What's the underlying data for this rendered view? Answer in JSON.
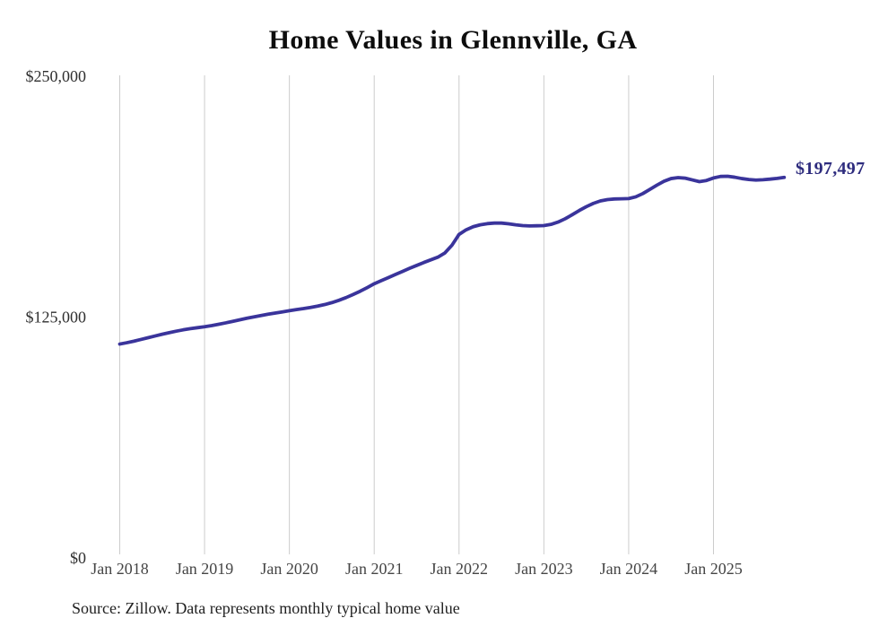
{
  "header": {
    "title": "Home Values in Glennville, GA"
  },
  "chart_data": {
    "type": "line",
    "title": "Home Values in Glennville, GA",
    "xlabel": "",
    "ylabel": "",
    "frequency": "monthly",
    "x_tick_labels": [
      "Jan 2018",
      "Jan 2019",
      "Jan 2020",
      "Jan 2021",
      "Jan 2022",
      "Jan 2023",
      "Jan 2024",
      "Jan 2025"
    ],
    "y_ticks": [
      {
        "label": "$0",
        "value": 0
      },
      {
        "label": "$125,000",
        "value": 125000
      },
      {
        "label": "$250,000",
        "value": 250000
      }
    ],
    "ylim": [
      0,
      250000
    ],
    "grid": "vertical-only",
    "legend": "none",
    "series": [
      {
        "name": "Typical home value",
        "start": "Jan 2018",
        "values": [
          111000,
          111700,
          112500,
          113400,
          114300,
          115200,
          116100,
          116900,
          117700,
          118400,
          119000,
          119500,
          120000,
          120600,
          121300,
          122000,
          122800,
          123600,
          124400,
          125100,
          125800,
          126500,
          127100,
          127700,
          128300,
          128900,
          129400,
          130000,
          130700,
          131500,
          132500,
          133700,
          135100,
          136700,
          138400,
          140300,
          142300,
          143900,
          145500,
          147100,
          148700,
          150300,
          151800,
          153300,
          154700,
          156100,
          158300,
          162300,
          167900,
          170300,
          171900,
          172900,
          173500,
          173800,
          173800,
          173400,
          172900,
          172500,
          172300,
          172400,
          172500,
          173100,
          174300,
          176000,
          178100,
          180300,
          182300,
          184000,
          185300,
          186000,
          186300,
          186400,
          186500,
          187400,
          189100,
          191300,
          193500,
          195500,
          196900,
          197400,
          197100,
          196200,
          195300,
          195900,
          197200,
          198000,
          198100,
          197600,
          196900,
          196400,
          196100,
          196300,
          196600,
          197000,
          197497
        ]
      }
    ],
    "latest_value": 197497,
    "end_label": "$197,497",
    "colors": {
      "line": "#3a349b",
      "end_label": "#2e2c7e",
      "gridline": "#cccccc",
      "x_tick_text": "#454545",
      "y_tick_text": "#2f2f2f",
      "title_text": "#0d0d0d",
      "source_text": "#1f1f1f"
    }
  },
  "footer": {
    "source_note": "Source: Zillow. Data represents monthly typical home value"
  }
}
